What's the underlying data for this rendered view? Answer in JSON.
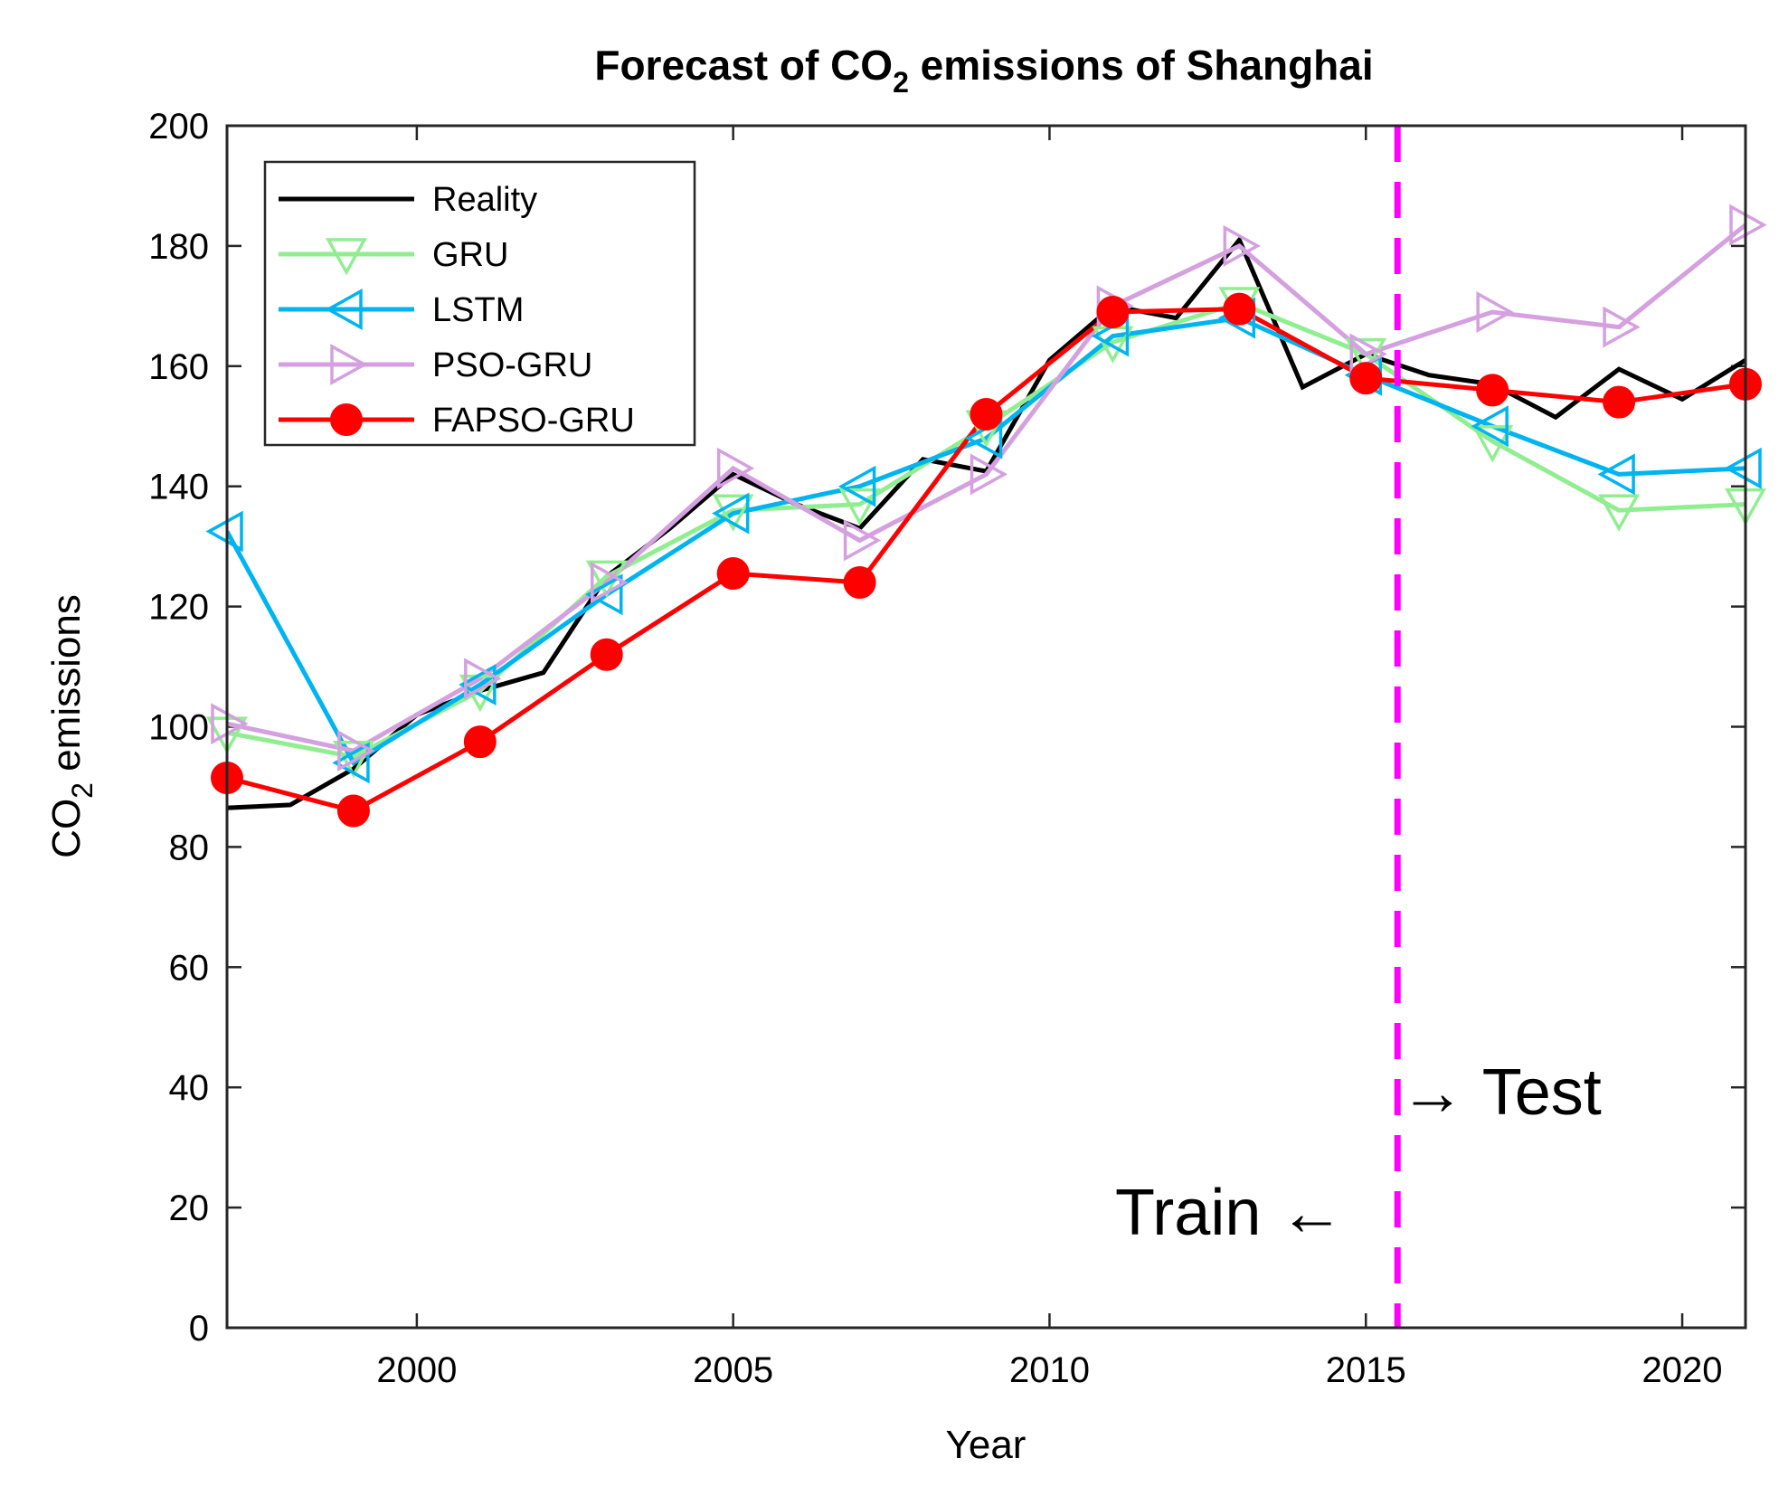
{
  "chart_data": {
    "type": "line",
    "title": {
      "prefix": "Forecast of CO",
      "sub": "2",
      "suffix": " emissions of Shanghai"
    },
    "xlabel": "Year",
    "ylabel": {
      "prefix": "CO",
      "sub": "2",
      "suffix": " emissions"
    },
    "xlim": [
      1997,
      2021
    ],
    "ylim": [
      0,
      200
    ],
    "xticks": [
      2000,
      2005,
      2010,
      2015,
      2020
    ],
    "yticks": [
      0,
      20,
      40,
      60,
      80,
      100,
      120,
      140,
      160,
      180,
      200
    ],
    "split_x": 2015.5,
    "split_color": "#ff00ff",
    "annotations": {
      "train": "Train ←",
      "test": "→ Test"
    },
    "legend_position": "top-left",
    "series": [
      {
        "name": "Reality",
        "color": "#000000",
        "marker": "none",
        "x": [
          1997,
          1998,
          1999,
          2000,
          2001,
          2002,
          2003,
          2004,
          2005,
          2006,
          2007,
          2008,
          2009,
          2010,
          2011,
          2012,
          2013,
          2014,
          2015,
          2016,
          2017,
          2018,
          2019,
          2020,
          2021
        ],
        "y": [
          86.5,
          87,
          93,
          102,
          106,
          109,
          125,
          133,
          142,
          137,
          133,
          144.5,
          142.5,
          161,
          170,
          168,
          181,
          156.5,
          162,
          158.5,
          157,
          151.5,
          159.5,
          154.5,
          161
        ]
      },
      {
        "name": "GRU",
        "color": "#90ee90",
        "marker": "triangle-down",
        "x": [
          1997,
          1999,
          2001,
          2003,
          2005,
          2007,
          2009,
          2011,
          2013,
          2015,
          2017,
          2019,
          2021
        ],
        "y": [
          99,
          95,
          106,
          125,
          136,
          137,
          150,
          164,
          170.5,
          162,
          147.5,
          136,
          137
        ]
      },
      {
        "name": "LSTM",
        "color": "#00b4f0",
        "marker": "triangle-left",
        "x": [
          1997,
          1999,
          2001,
          2003,
          2005,
          2007,
          2009,
          2011,
          2013,
          2015,
          2017,
          2019,
          2021
        ],
        "y": [
          132.5,
          94,
          107,
          122,
          135.5,
          140,
          148,
          165,
          168,
          158.5,
          150,
          142,
          143
        ]
      },
      {
        "name": "PSO-GRU",
        "color": "#d4a0e0",
        "marker": "triangle-right",
        "x": [
          1997,
          1999,
          2001,
          2003,
          2005,
          2007,
          2009,
          2011,
          2013,
          2015,
          2017,
          2019,
          2021
        ],
        "y": [
          100.5,
          96,
          108,
          124,
          143,
          131,
          142,
          170,
          180,
          162,
          169,
          166.5,
          183.5
        ]
      },
      {
        "name": "FAPSO-GRU",
        "color": "#ff0000",
        "marker": "circle",
        "x": [
          1997,
          1999,
          2001,
          2003,
          2005,
          2007,
          2009,
          2011,
          2013,
          2015,
          2017,
          2019,
          2021
        ],
        "y": [
          91.5,
          86,
          97.5,
          112,
          125.5,
          124,
          152,
          169,
          169.5,
          158,
          156,
          154,
          157
        ]
      }
    ]
  }
}
